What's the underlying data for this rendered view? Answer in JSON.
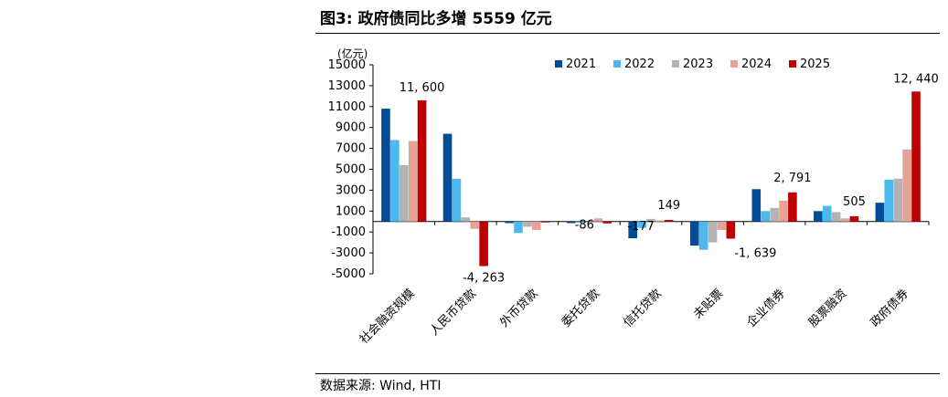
{
  "figure": {
    "title": "图3:  政府债同比多增 5559 亿元",
    "source": "数据来源:  Wind,  HTI"
  },
  "chart_data": {
    "type": "bar",
    "title": "",
    "unit_label": "(亿元)",
    "categories": [
      "社会融资规模",
      "人民币贷款",
      "外币贷款",
      "委托贷款",
      "信托贷款",
      "未贴票",
      "企业债券",
      "股票融资",
      "政府债券"
    ],
    "yticks": [
      "15000",
      "13000",
      "11000",
      "9000",
      "7000",
      "5000",
      "3000",
      "1000",
      "-1000",
      "-3000",
      "-5000"
    ],
    "ylim": [
      -5000,
      15000
    ],
    "legend_position": "top",
    "series": [
      {
        "name": "2021",
        "color": "#004C97",
        "values": [
          10800,
          8400,
          -150,
          -150,
          -1600,
          -2300,
          3100,
          1000,
          1800
        ]
      },
      {
        "name": "2022",
        "color": "#4BB9EE",
        "values": [
          7800,
          4100,
          -1100,
          -100,
          -600,
          -2700,
          1000,
          1500,
          4000
        ]
      },
      {
        "name": "2023",
        "color": "#B3B3B3",
        "values": [
          5400,
          400,
          -500,
          -100,
          250,
          -2000,
          1300,
          900,
          4100
        ]
      },
      {
        "name": "2024",
        "color": "#E5A296",
        "values": [
          7700,
          -700,
          -800,
          300,
          100,
          -800,
          2000,
          300,
          6900
        ]
      },
      {
        "name": "2025",
        "color": "#C00000",
        "values": [
          11600,
          -4263,
          -86,
          -177,
          149,
          -1639,
          2791,
          505,
          12440
        ]
      }
    ],
    "data_labels": [
      "11, 600",
      "-4, 263",
      "-86",
      "-177",
      "149",
      "-1, 639",
      "2, 791",
      "505",
      "12, 440"
    ]
  }
}
